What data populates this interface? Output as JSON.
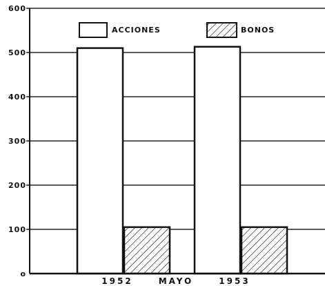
{
  "chart_data": {
    "type": "bar",
    "categories": [
      "1952",
      "1953"
    ],
    "x_caption": "MAYO",
    "series": [
      {
        "name": "ACCIONES",
        "values": [
          510,
          513
        ],
        "fill": "#ffffff",
        "pattern": "none"
      },
      {
        "name": "BONOS",
        "values": [
          105,
          105
        ],
        "fill": "#ffffff",
        "pattern": "diagonal-hatch"
      }
    ],
    "yticks": [
      0,
      100,
      200,
      300,
      400,
      500,
      600
    ],
    "ytick_labels": [
      "o",
      "100",
      "200",
      "300",
      "400",
      "500",
      "600"
    ],
    "ylim": [
      0,
      600
    ],
    "grid": true,
    "legend_position": "top",
    "title": "",
    "xlabel": "",
    "ylabel": ""
  }
}
